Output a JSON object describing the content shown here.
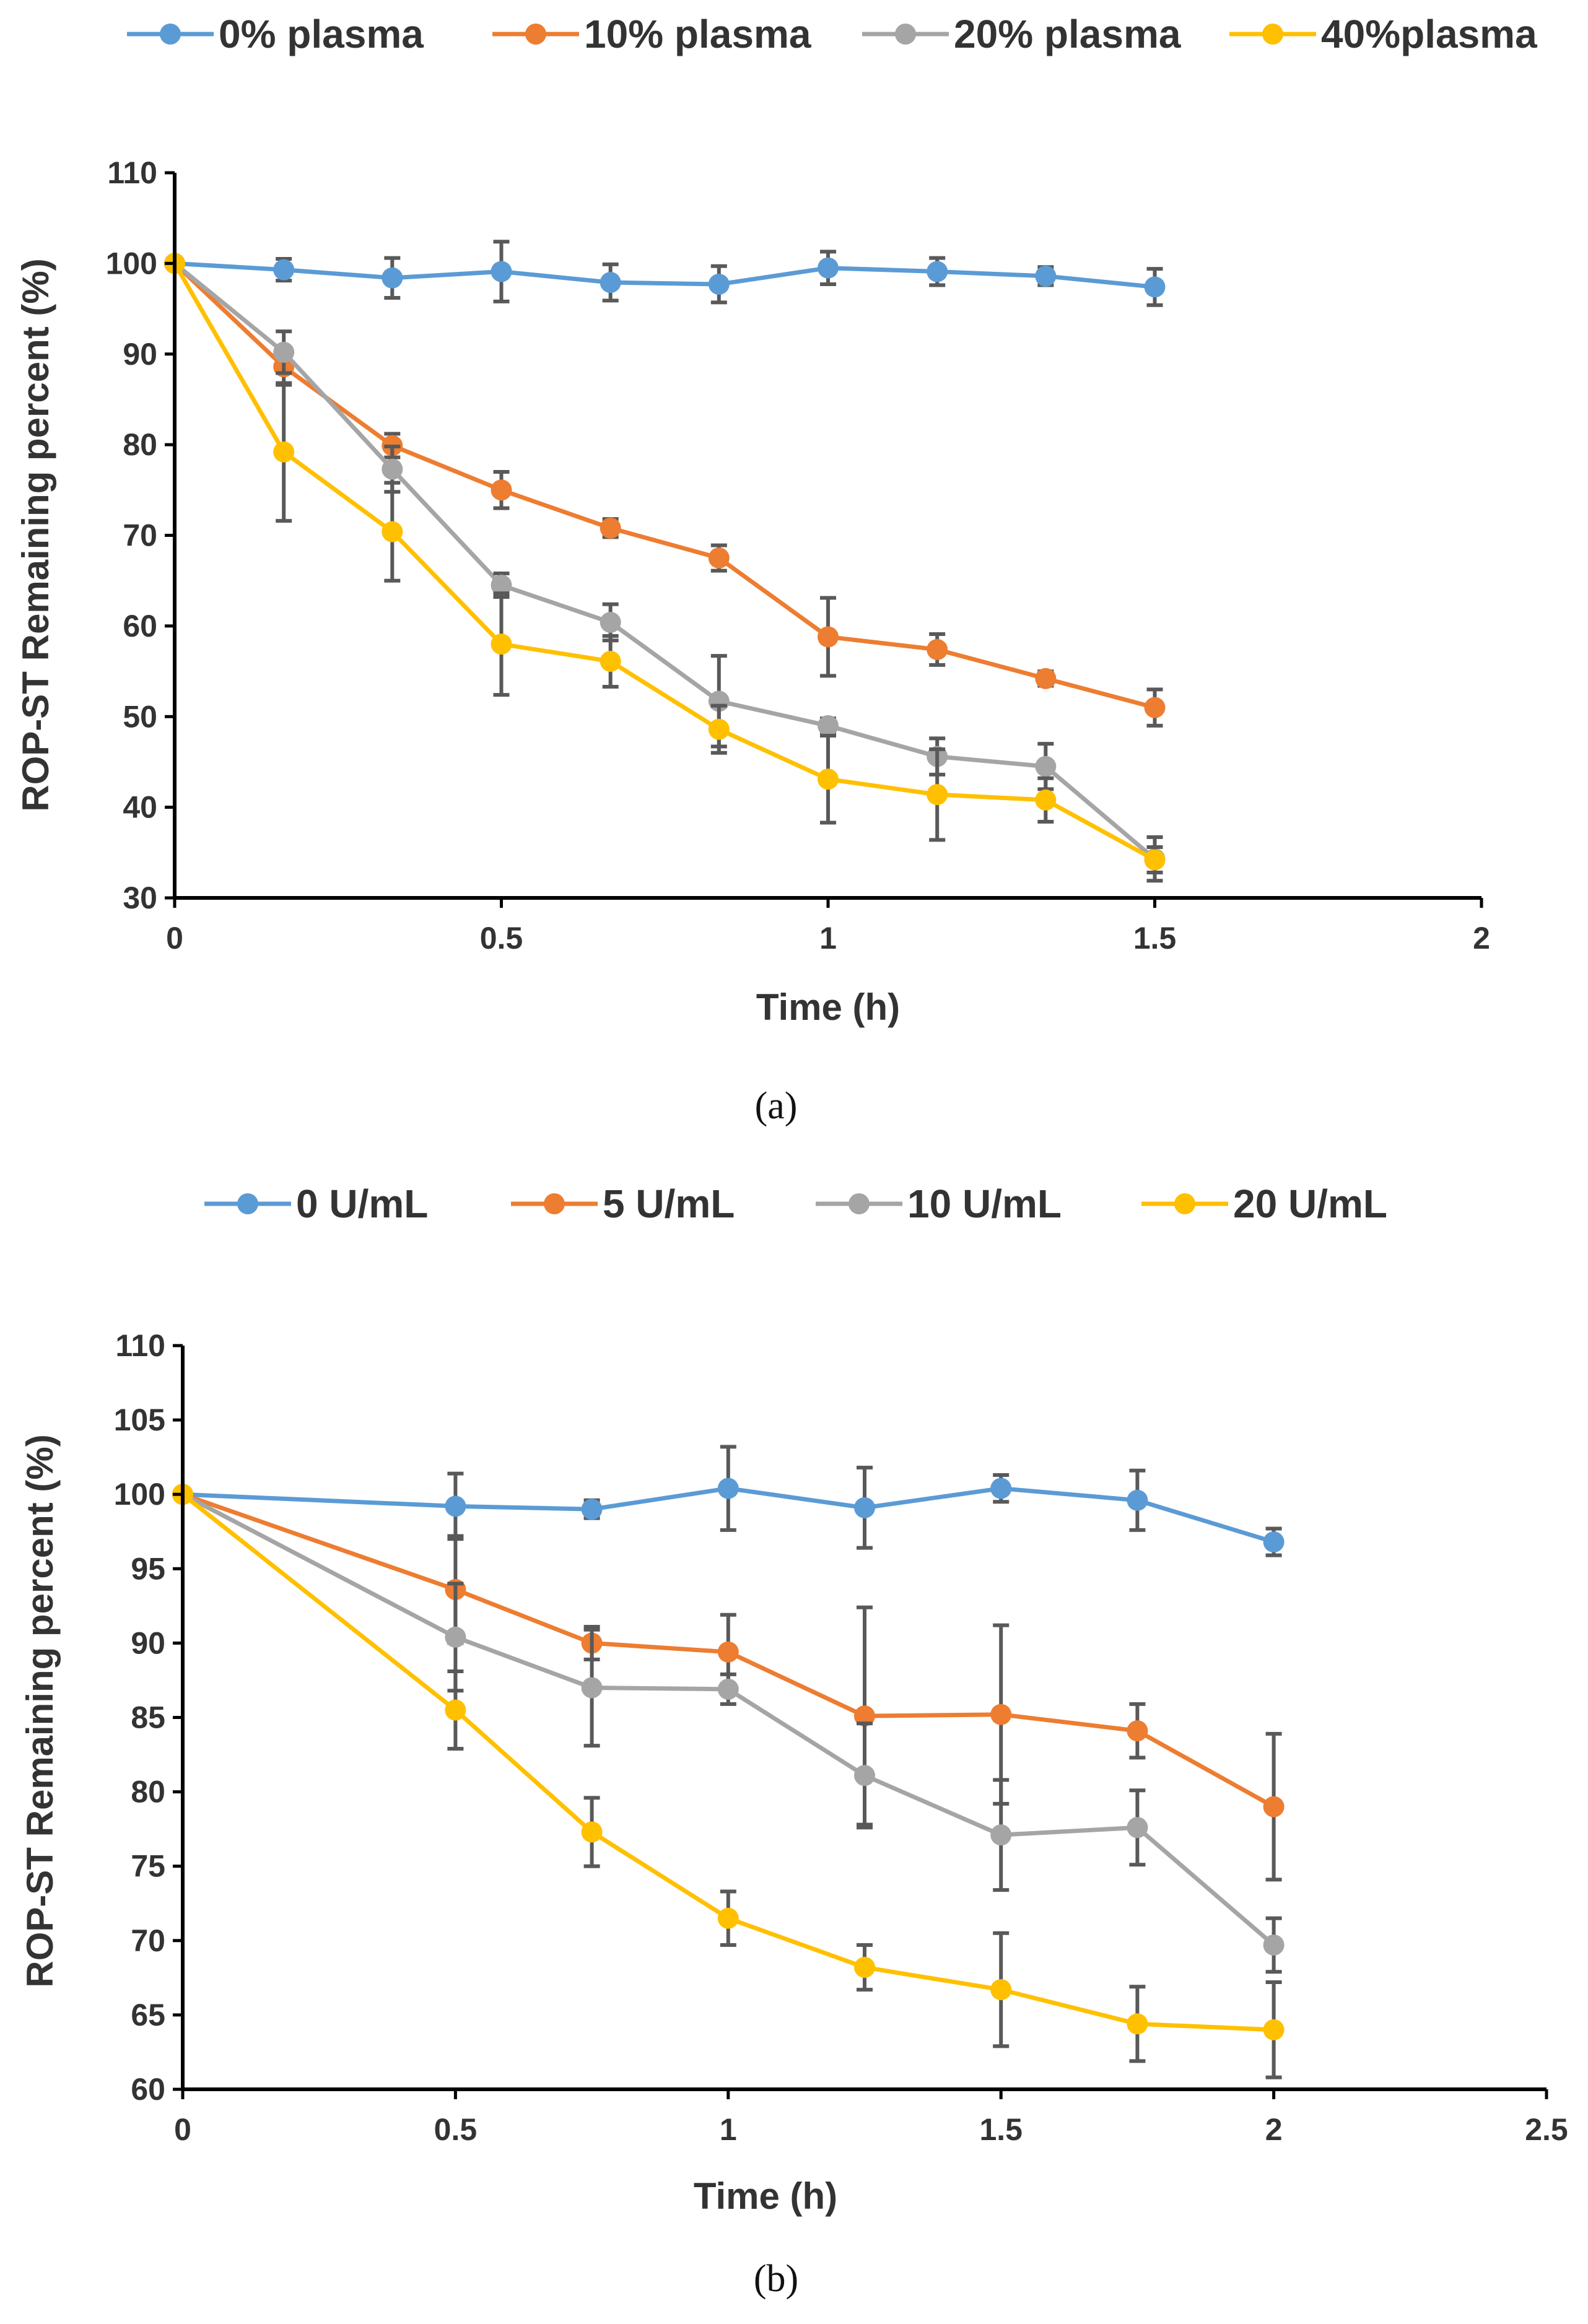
{
  "colors": {
    "blue": "#5B9BD5",
    "orange": "#ED7D31",
    "gray": "#A5A5A5",
    "yellow": "#FFC000",
    "error_bar": "#595959",
    "axis": "#000000"
  },
  "chart_data": [
    {
      "type": "line",
      "caption": "(a)",
      "title": "",
      "xlabel": "Time (h)",
      "ylabel": "ROP-ST Remaining percent (%)",
      "xlim": [
        0,
        2
      ],
      "ylim": [
        30,
        110
      ],
      "x_ticks": [
        "0",
        "0.5",
        "1",
        "1.5",
        "2"
      ],
      "y_ticks": [
        "30",
        "40",
        "50",
        "60",
        "70",
        "80",
        "90",
        "100",
        "110"
      ],
      "grid": false,
      "legend_position": "top",
      "x": [
        0,
        0.167,
        0.333,
        0.5,
        0.667,
        0.833,
        1,
        1.167,
        1.333,
        1.5
      ],
      "series": [
        {
          "name": "0% plasma",
          "color": "blue",
          "values": [
            100,
            99.3,
            98.4,
            99.1,
            97.9,
            97.7,
            99.5,
            99.1,
            98.6,
            97.4
          ],
          "errors": [
            0,
            1.2,
            2.2,
            3.3,
            2.0,
            2.0,
            1.8,
            1.5,
            1.0,
            2.0
          ]
        },
        {
          "name": "10% plasma",
          "color": "orange",
          "values": [
            100,
            88.6,
            79.9,
            75.0,
            70.8,
            67.5,
            58.8,
            57.4,
            54.2,
            51.0
          ],
          "errors": [
            0,
            2.0,
            1.3,
            2.0,
            1.0,
            1.4,
            4.3,
            1.7,
            0.8,
            2.0
          ]
        },
        {
          "name": "20% plasma",
          "color": "gray",
          "values": [
            100,
            90.2,
            77.3,
            64.5,
            60.4,
            51.7,
            49.0,
            45.6,
            44.5,
            34.3
          ],
          "errors": [
            0,
            2.3,
            2.5,
            1.3,
            2.0,
            5.0,
            0.8,
            2.0,
            2.5,
            2.4
          ]
        },
        {
          "name": "40%plasma",
          "color": "yellow",
          "values": [
            100,
            79.2,
            70.4,
            58.0,
            56.1,
            48.6,
            43.1,
            41.4,
            40.8,
            34.2
          ],
          "errors": [
            0,
            7.6,
            5.4,
            5.6,
            2.8,
            2.6,
            4.8,
            5.0,
            2.4,
            1.4
          ]
        }
      ]
    },
    {
      "type": "line",
      "caption": "(b)",
      "title": "",
      "xlabel": "Time (h)",
      "ylabel": "ROP-ST Remaining percent (%)",
      "xlim": [
        0,
        2.5
      ],
      "ylim": [
        60,
        110
      ],
      "x_ticks": [
        "0",
        "0.5",
        "1",
        "1.5",
        "2",
        "2.5"
      ],
      "y_ticks": [
        "60",
        "65",
        "70",
        "75",
        "80",
        "85",
        "90",
        "95",
        "100",
        "105",
        "110"
      ],
      "grid": false,
      "legend_position": "top",
      "x": [
        0,
        0.5,
        0.75,
        1,
        1.25,
        1.5,
        1.75,
        2
      ],
      "series": [
        {
          "name": "0 U/mL",
          "color": "blue",
          "values": [
            100,
            99.2,
            99.0,
            100.4,
            99.1,
            100.4,
            99.6,
            96.8
          ],
          "errors": [
            0,
            2.2,
            0.6,
            2.8,
            2.7,
            0.9,
            2.0,
            0.9
          ]
        },
        {
          "name": "5 U/mL",
          "color": "orange",
          "values": [
            100,
            93.6,
            90.0,
            89.4,
            85.1,
            85.2,
            84.1,
            79.0
          ],
          "errors": [
            0,
            3.6,
            1.1,
            2.5,
            7.3,
            6.0,
            1.8,
            4.9
          ]
        },
        {
          "name": "10 U/mL",
          "color": "gray",
          "values": [
            100,
            90.4,
            87.0,
            86.9,
            81.1,
            77.1,
            77.6,
            69.7
          ],
          "errors": [
            0,
            3.6,
            3.9,
            1.0,
            3.5,
            3.7,
            2.5,
            1.8
          ]
        },
        {
          "name": "20 U/mL",
          "color": "yellow",
          "values": [
            100,
            85.5,
            77.3,
            71.5,
            68.2,
            66.7,
            64.4,
            64.0
          ],
          "errors": [
            0,
            2.6,
            2.3,
            1.8,
            1.5,
            3.8,
            2.5,
            3.2
          ]
        }
      ]
    }
  ]
}
